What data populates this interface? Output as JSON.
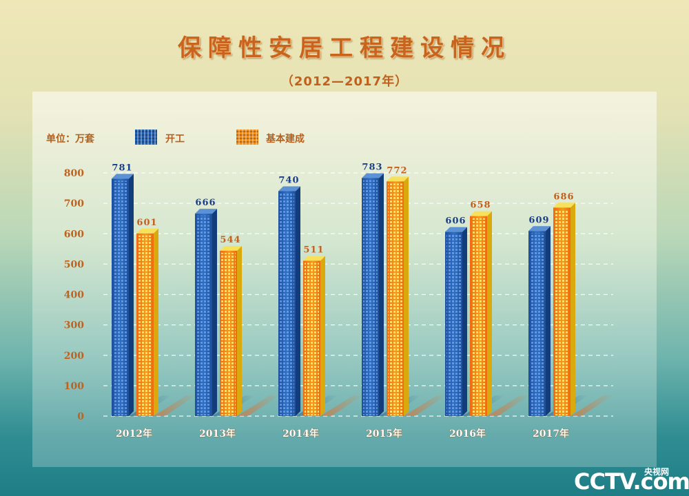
{
  "chart_data": {
    "type": "bar",
    "title": "保障性安居工程建设情况",
    "subtitle": "（2012—2017年）",
    "unit_label": "单位：万套",
    "categories": [
      "2012年",
      "2013年",
      "2014年",
      "2015年",
      "2016年",
      "2017年"
    ],
    "series": [
      {
        "name": "开工",
        "color": "#2a66b8",
        "values": [
          781,
          666,
          740,
          783,
          606,
          609
        ]
      },
      {
        "name": "基本建成",
        "color": "#f2901a",
        "values": [
          601,
          544,
          511,
          772,
          658,
          686
        ]
      }
    ],
    "yticks": [
      0,
      100,
      200,
      300,
      400,
      500,
      600,
      700,
      800
    ],
    "ylim": [
      0,
      800
    ],
    "grid": true,
    "legend_position": "top-left"
  },
  "logo": {
    "main": "CCTV.com",
    "sub": "央视网"
  }
}
